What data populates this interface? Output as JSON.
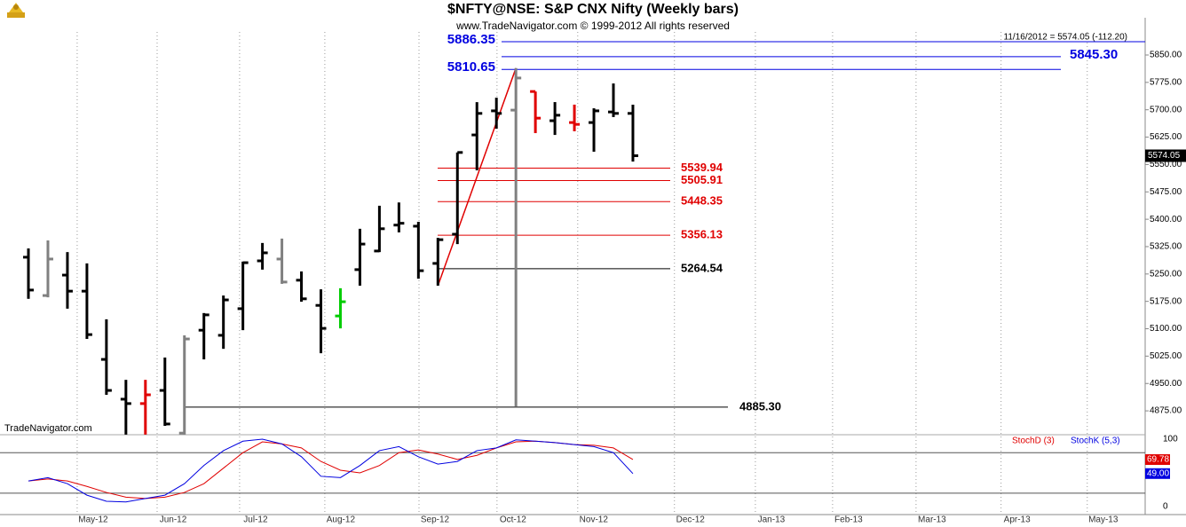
{
  "header": {
    "title": "$NFTY@NSE:  S&P CNX Nifty  (Weekly bars)",
    "subtitle": "www.TradeNavigator.com © 1999-2012 All rights reserved",
    "info": "11/16/2012 = 5574.05 (-112.20)",
    "watermark": "TradeNavigator.com"
  },
  "chart_data": [
    {
      "type": "ohlc",
      "xlim": [
        -1.23,
        57.27
      ],
      "ylim": [
        4809.6,
        5952.1
      ],
      "yticks": [
        {
          "value": 4875,
          "label": "4875.00"
        },
        {
          "value": 4950,
          "label": "4950.00"
        },
        {
          "value": 5025,
          "label": "5025.00"
        },
        {
          "value": 5100,
          "label": "5100.00"
        },
        {
          "value": 5175,
          "label": "5175.00"
        },
        {
          "value": 5250,
          "label": "5250.00"
        },
        {
          "value": 5325,
          "label": "5325.00"
        },
        {
          "value": 5400,
          "label": "5400.00"
        },
        {
          "value": 5475,
          "label": "5475.00"
        },
        {
          "value": 5550,
          "label": "5550.00"
        },
        {
          "value": 5625,
          "label": "5625.00"
        },
        {
          "value": 5700,
          "label": "5700.00"
        },
        {
          "value": 5775,
          "label": "5775.00"
        },
        {
          "value": 5850,
          "label": "5850.00"
        }
      ],
      "xticks": [
        {
          "value": 2.5,
          "label": "May-12"
        },
        {
          "value": 6.6,
          "label": "Jun-12"
        },
        {
          "value": 10.83,
          "label": "Jul-12"
        },
        {
          "value": 15.2,
          "label": "Aug-12"
        },
        {
          "value": 20.03,
          "label": "Sep-12"
        },
        {
          "value": 24.03,
          "label": "Oct-12"
        },
        {
          "value": 28.17,
          "label": "Nov-12"
        },
        {
          "value": 33.13,
          "label": "Dec-12"
        },
        {
          "value": 37.28,
          "label": "Jan-13"
        },
        {
          "value": 41.24,
          "label": "Feb-13"
        },
        {
          "value": 45.52,
          "label": "Mar-13"
        },
        {
          "value": 49.88,
          "label": "Apr-13"
        },
        {
          "value": 54.3,
          "label": "May-13"
        }
      ],
      "bars": [
        {
          "open": 5296,
          "high": 5320,
          "low": 5182,
          "close": 5206,
          "color": "#000000"
        },
        {
          "open": 5191,
          "high": 5342,
          "low": 5186,
          "close": 5291,
          "color": "#808080"
        },
        {
          "open": 5247,
          "high": 5310,
          "low": 5155,
          "close": 5203,
          "color": "#000000"
        },
        {
          "open": 5203,
          "high": 5279,
          "low": 5072,
          "close": 5084,
          "color": "#000000"
        },
        {
          "open": 5016,
          "high": 5126,
          "low": 4919,
          "close": 4931,
          "color": "#000000"
        },
        {
          "open": 4907,
          "high": 4960,
          "low": 4810,
          "close": 4895,
          "color": "#000000"
        },
        {
          "open": 4895,
          "high": 4960,
          "low": 4810,
          "close": 4919,
          "color": "#e00000"
        },
        {
          "open": 4931,
          "high": 5021,
          "low": 4834,
          "close": 4839,
          "color": "#000000"
        },
        {
          "open": 4814,
          "high": 5082,
          "low": 4810,
          "close": 5072,
          "color": "#808080"
        },
        {
          "open": 5096,
          "high": 5143,
          "low": 5016,
          "close": 5138,
          "color": "#000000"
        },
        {
          "open": 5082,
          "high": 5191,
          "low": 5045,
          "close": 5179,
          "color": "#000000"
        },
        {
          "open": 5155,
          "high": 5284,
          "low": 5096,
          "close": 5281,
          "color": "#000000"
        },
        {
          "open": 5286,
          "high": 5335,
          "low": 5262,
          "close": 5308,
          "color": "#000000"
        },
        {
          "open": 5291,
          "high": 5347,
          "low": 5223,
          "close": 5228,
          "color": "#808080"
        },
        {
          "open": 5233,
          "high": 5257,
          "low": 5174,
          "close": 5182,
          "color": "#000000"
        },
        {
          "open": 5164,
          "high": 5208,
          "low": 5033,
          "close": 5101,
          "color": "#000000"
        },
        {
          "open": 5135,
          "high": 5211,
          "low": 5101,
          "close": 5174,
          "color": "#00cc00"
        },
        {
          "open": 5262,
          "high": 5374,
          "low": 5218,
          "close": 5332,
          "color": "#000000"
        },
        {
          "open": 5313,
          "high": 5437,
          "low": 5310,
          "close": 5374,
          "color": "#000000"
        },
        {
          "open": 5384,
          "high": 5446,
          "low": 5364,
          "close": 5389,
          "color": "#000000"
        },
        {
          "open": 5381,
          "high": 5393,
          "low": 5237,
          "close": 5259,
          "color": "#000000"
        },
        {
          "open": 5279,
          "high": 5349,
          "low": 5218,
          "close": 5344,
          "color": "#000000"
        },
        {
          "open": 5359,
          "high": 5583,
          "low": 5332,
          "close": 5583,
          "color": "#000000"
        },
        {
          "open": 5631,
          "high": 5721,
          "low": 5534,
          "close": 5690,
          "color": "#000000"
        },
        {
          "open": 5697,
          "high": 5733,
          "low": 5648,
          "close": 5690,
          "color": "#000000"
        },
        {
          "open": 5699,
          "high": 5814,
          "low": 4887,
          "close": 5787,
          "color": "#808080"
        },
        {
          "open": 5750,
          "high": 5750,
          "low": 5636,
          "close": 5677,
          "color": "#e00000"
        },
        {
          "open": 5670,
          "high": 5721,
          "low": 5631,
          "close": 5685,
          "color": "#000000"
        },
        {
          "open": 5665,
          "high": 5714,
          "low": 5641,
          "close": 5660,
          "color": "#e00000"
        },
        {
          "open": 5665,
          "high": 5704,
          "low": 5585,
          "close": 5697,
          "color": "#000000"
        },
        {
          "open": 5694,
          "high": 5772,
          "low": 5680,
          "close": 5690,
          "color": "#000000"
        },
        {
          "open": 5690,
          "high": 5714,
          "low": 5558,
          "close": 5574.05,
          "color": "#000000"
        }
      ],
      "last_price": {
        "value": 5574.05
      },
      "trend_line": {
        "x": [
          21,
          25
        ],
        "y": [
          5218,
          5814
        ],
        "color": "#e00000"
      },
      "levels": [
        {
          "value": 5886.35,
          "color": "#0000e0"
        },
        {
          "value": 5845.3,
          "value_label": "5845.30",
          "color": "#0000e0"
        },
        {
          "value": 5810.65,
          "color": "#0000e0"
        },
        {
          "value": 5539.94,
          "color": "#e00000"
        },
        {
          "value": 5505.91,
          "color": "#e00000"
        },
        {
          "value": 5448.35,
          "color": "#e00000"
        },
        {
          "value": 5356.13,
          "color": "#e00000"
        },
        {
          "value": 5264.54,
          "color": "#000000"
        },
        {
          "value": 4885.3,
          "value_label": "4885.30",
          "color": "#000000"
        }
      ]
    },
    {
      "type": "line",
      "ylim": [
        -11.8,
        106.6
      ],
      "yticks": [
        0,
        100
      ],
      "bands": [
        20,
        80
      ],
      "series": [
        {
          "name": "StochD (3)",
          "color": "#e00000",
          "values": [
            38,
            41,
            38,
            30,
            21,
            14,
            12,
            14,
            21,
            34,
            57,
            80,
            96,
            93,
            87,
            67,
            54,
            50,
            61,
            80,
            84,
            78,
            70,
            76,
            87,
            96,
            97,
            95,
            92,
            91,
            87,
            69.78
          ]
        },
        {
          "name": "StochK (5,3)",
          "color": "#0000e0",
          "values": [
            38,
            43,
            34,
            17,
            8,
            7,
            12,
            17,
            34,
            61,
            83,
            97,
            100,
            93,
            74,
            45,
            43,
            61,
            83,
            89,
            74,
            63,
            67,
            83,
            87,
            99,
            97,
            95,
            92,
            89,
            80,
            49.0
          ],
          "last_label": "49.00"
        }
      ]
    }
  ]
}
